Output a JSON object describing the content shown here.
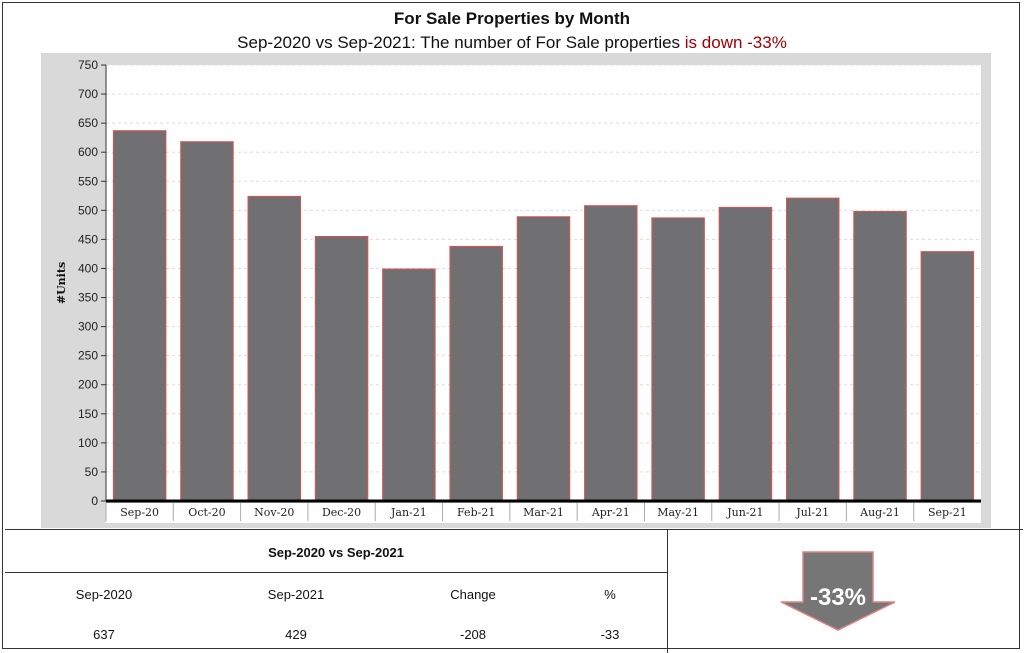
{
  "title": "For Sale Properties by Month",
  "subtitle_main": "Sep-2020 vs Sep-2021: The number of For Sale properties",
  "subtitle_highlight": "is down -33%",
  "colors": {
    "bar": "#707073",
    "bar_edge": "#e05050",
    "highlight": "#a00000",
    "plot_bg": "#ffffff",
    "frame_bg": "#d9d9d9",
    "arrow": "#767676"
  },
  "chart_data": {
    "type": "bar",
    "title": "For Sale Properties by Month",
    "ylabel": "#Units",
    "xlabel": "",
    "ylim": [
      0,
      750
    ],
    "yticks": [
      0,
      50,
      100,
      150,
      200,
      250,
      300,
      350,
      400,
      450,
      500,
      550,
      600,
      650,
      700,
      750
    ],
    "grid": true,
    "categories": [
      "Sep-20",
      "Oct-20",
      "Nov-20",
      "Dec-20",
      "Jan-21",
      "Feb-21",
      "Mar-21",
      "Apr-21",
      "May-21",
      "Jun-21",
      "Jul-21",
      "Aug-21",
      "Sep-21"
    ],
    "values": [
      637,
      618,
      524,
      455,
      399,
      438,
      489,
      508,
      487,
      505,
      521,
      498,
      429
    ]
  },
  "table": {
    "title": "Sep-2020 vs Sep-2021",
    "headers": [
      "Sep-2020",
      "Sep-2021",
      "Change",
      "%"
    ],
    "values": [
      "637",
      "429",
      "-208",
      "-33"
    ]
  },
  "badge": {
    "text": "-33%",
    "icon": "down-arrow-icon"
  }
}
